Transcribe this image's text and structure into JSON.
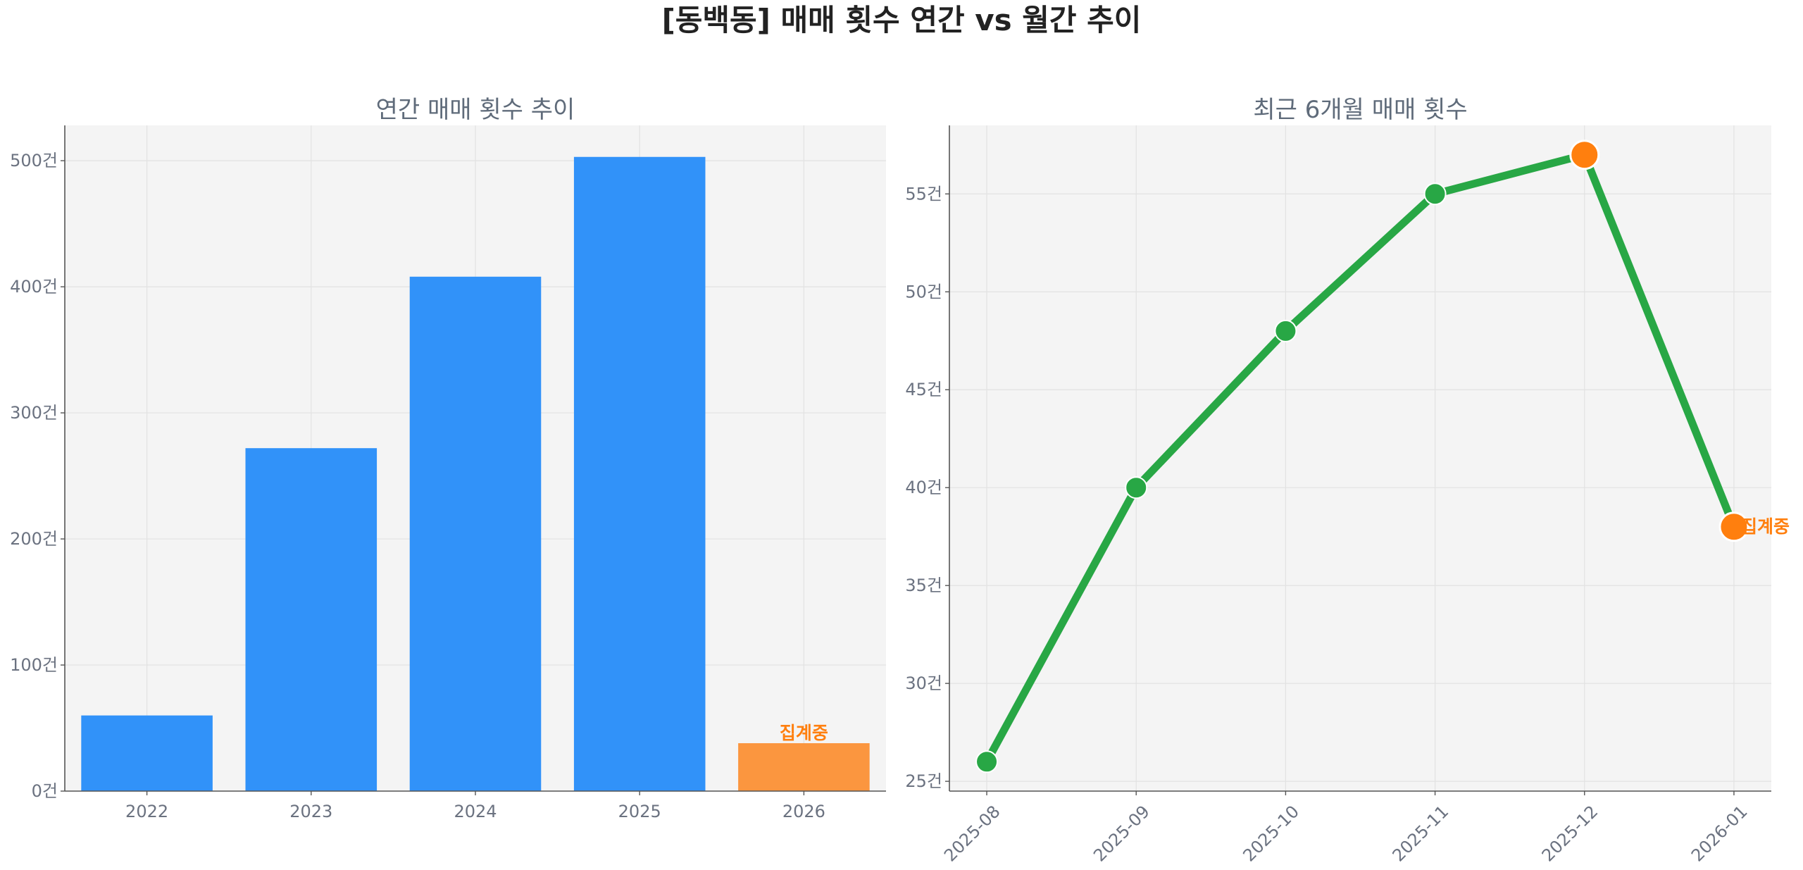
{
  "figure": {
    "title": "[동백동] 매매 횟수 연간 vs 월간 추이",
    "background": "#ffffff",
    "axes_facecolor": "#f4f4f4",
    "text_color": "#6b7280",
    "title_color": "#5f6b7a"
  },
  "chart_data": [
    {
      "type": "bar",
      "title": "연간 매매 횟수 추이",
      "categories": [
        "2022",
        "2023",
        "2024",
        "2025",
        "2026"
      ],
      "values": [
        60,
        272,
        408,
        503,
        38
      ],
      "ylim": [
        0,
        528
      ],
      "yticks": [
        0,
        100,
        200,
        300,
        400,
        500
      ],
      "ytick_labels": [
        "0건",
        "100건",
        "200건",
        "300건",
        "400건",
        "500건"
      ],
      "xlabel": "",
      "ylabel": "",
      "grid": true,
      "bar_color": "#3192f9",
      "highlight_color": "#fb963f",
      "highlight_index": 4,
      "annotation": {
        "text": "집계중",
        "category_index": 4,
        "color": "#ff7f0e"
      }
    },
    {
      "type": "line",
      "title": "최근 6개월 매매 횟수",
      "x": [
        "2025-08",
        "2025-09",
        "2025-10",
        "2025-11",
        "2025-12",
        "2026-01"
      ],
      "values": [
        26,
        40,
        48,
        55,
        57,
        38
      ],
      "ylim": [
        24.5,
        58.5
      ],
      "yticks": [
        25,
        30,
        35,
        40,
        45,
        50,
        55
      ],
      "ytick_labels": [
        "25건",
        "30건",
        "35건",
        "40건",
        "45건",
        "50건",
        "55건"
      ],
      "xlabel": "",
      "ylabel": "",
      "grid": true,
      "line_color": "#28a745",
      "highlight_color": "#ff7f0e",
      "highlight_indices": [
        4,
        5
      ],
      "annotation": {
        "text": "집계중",
        "point_index": 5,
        "color": "#ff7f0e"
      }
    }
  ]
}
